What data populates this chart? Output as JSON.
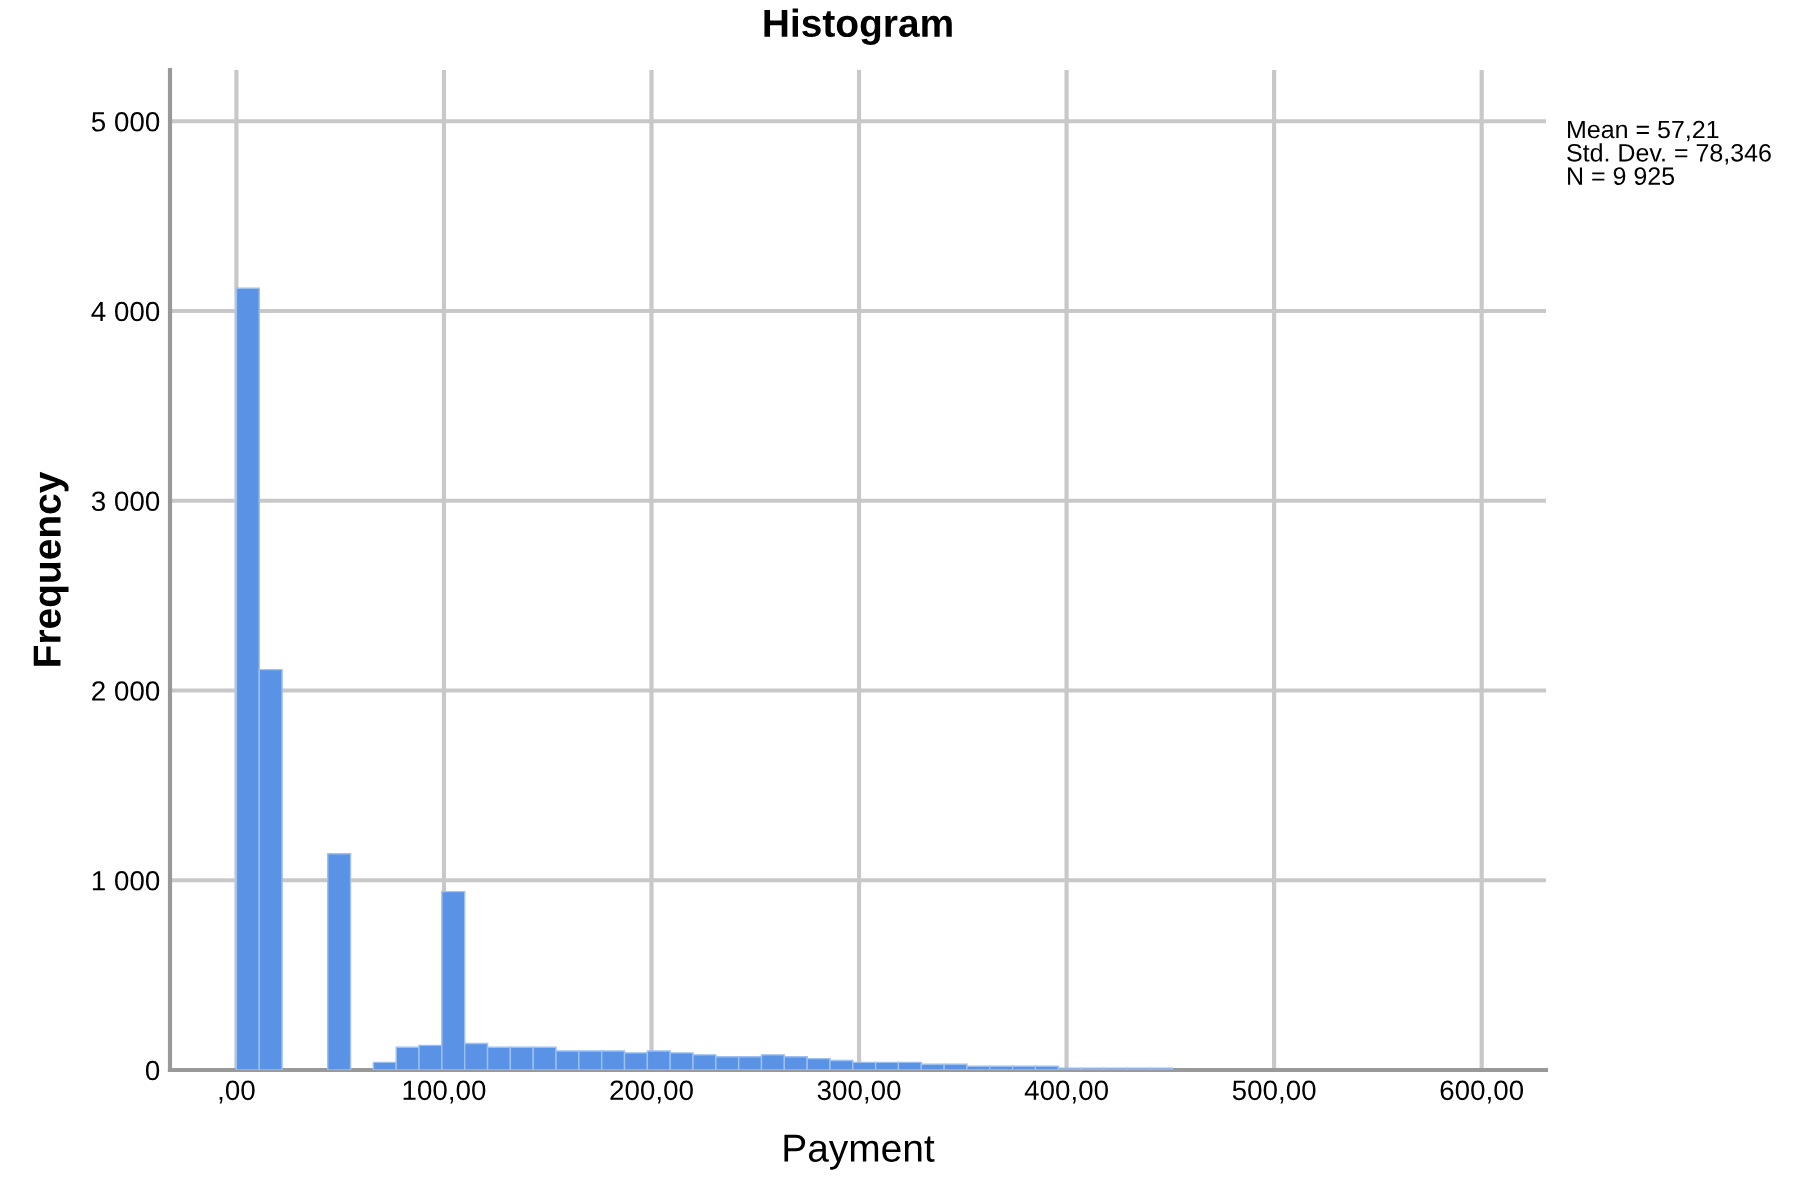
{
  "chart_data": {
    "type": "histogram",
    "title": "Histogram",
    "xlabel": "Payment",
    "ylabel": "Frequency",
    "bins": [
      0,
      11,
      22,
      33,
      44,
      55,
      66,
      77,
      88,
      99,
      110,
      121,
      132,
      143,
      154,
      165,
      176,
      187,
      198,
      209,
      220,
      231,
      242,
      253,
      264,
      275,
      286,
      297,
      308,
      319,
      330,
      341,
      352,
      363,
      374,
      385,
      396,
      407,
      418,
      429,
      440,
      451,
      462,
      473,
      484,
      495,
      506,
      517,
      528,
      539,
      550,
      561,
      572,
      583,
      594,
      605
    ],
    "values": [
      4120,
      2110,
      0,
      0,
      1140,
      0,
      40,
      120,
      130,
      940,
      140,
      120,
      120,
      120,
      100,
      100,
      100,
      90,
      100,
      90,
      80,
      70,
      70,
      80,
      70,
      60,
      50,
      40,
      40,
      40,
      30,
      30,
      20,
      20,
      20,
      20,
      10,
      10,
      10,
      10,
      10,
      0,
      0,
      0,
      0,
      0,
      0,
      0,
      0,
      0,
      0,
      0,
      0,
      0,
      0
    ],
    "color": "#5a93e6",
    "xlim": [
      -32,
      631
    ],
    "ylim": [
      0,
      5270
    ],
    "xticks": [
      {
        "value": 0,
        "label": ",00"
      },
      {
        "value": 100,
        "label": "100,00"
      },
      {
        "value": 200,
        "label": "200,00"
      },
      {
        "value": 300,
        "label": "300,00"
      },
      {
        "value": 400,
        "label": "400,00"
      },
      {
        "value": 500,
        "label": "500,00"
      },
      {
        "value": 600,
        "label": "600,00"
      }
    ],
    "yticks": [
      {
        "value": 0,
        "label": "0"
      },
      {
        "value": 1000,
        "label": "1 000"
      },
      {
        "value": 2000,
        "label": "2 000"
      },
      {
        "value": 3000,
        "label": "3 000"
      },
      {
        "value": 4000,
        "label": "4 000"
      },
      {
        "value": 5000,
        "label": "5 000"
      }
    ],
    "grid": true,
    "annotations": [
      "Mean = 57,21\nStd. Dev. = 78,346\nN = 9 925"
    ]
  }
}
